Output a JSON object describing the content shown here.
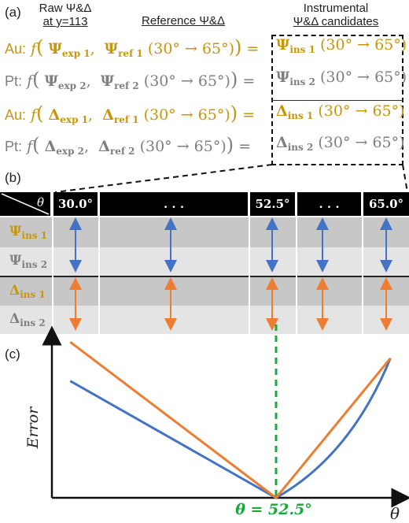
{
  "panel_a": {
    "label": "(a)",
    "col_raw": [
      "Raw Ψ&Δ",
      "at y=113"
    ],
    "col_ref": "Reference Ψ&Δ",
    "col_ins": [
      "Instrumental",
      "Ψ&Δ candidates"
    ],
    "rows": [
      {
        "prefix": "Au:",
        "f": "f",
        "s1": "Ψ",
        "sub1": "exp 1",
        "s2": "Ψ",
        "sub2": "ref 1",
        "range": "(30° → 65°)",
        "eq": "=",
        "s3": "Ψ",
        "sub3": "ins 1",
        "range2": "(30° → 65°)",
        "color": "#c8960a"
      },
      {
        "prefix": "Pt:",
        "f": "f",
        "s1": "Ψ",
        "sub1": "exp 2",
        "s2": "Ψ",
        "sub2": "ref 2",
        "range": "(30° → 65°)",
        "eq": "=",
        "s3": "Ψ",
        "sub3": "ins 2",
        "range2": "(30° → 65°)",
        "color": "#7f7f7f"
      },
      {
        "prefix": "Au:",
        "f": "f",
        "s1": "Δ",
        "sub1": "exp 1",
        "s2": "Δ",
        "sub2": "ref 1",
        "range": "(30° → 65°)",
        "eq": "=",
        "s3": "Δ",
        "sub3": "ins 1",
        "range2": "(30° → 65°)",
        "color": "#c8960a"
      },
      {
        "prefix": "Pt:",
        "f": "f",
        "s1": "Δ",
        "sub1": "exp 2",
        "s2": "Δ",
        "sub2": "ref 2",
        "range": "(30° → 65°)",
        "eq": "=",
        "s3": "Δ",
        "sub3": "ins 2",
        "range2": "(30° → 65°)",
        "color": "#7f7f7f"
      }
    ]
  },
  "panel_b": {
    "label": "(b)",
    "corner": "θ",
    "headers": [
      "30.0°",
      ". . .",
      "52.5°",
      ". . .",
      "65.0°"
    ],
    "rows": [
      {
        "sym": "Ψ",
        "sub": "ins 1",
        "color": "#c8960a"
      },
      {
        "sym": "Ψ",
        "sub": "ins 2",
        "color": "#7f7f7f"
      },
      {
        "sym": "Δ",
        "sub": "ins 1",
        "color": "#c8960a"
      },
      {
        "sym": "Δ",
        "sub": "ins 2",
        "color": "#7f7f7f"
      }
    ],
    "arrow_colors": {
      "psi": "#4472c4",
      "delta": "#ed7d31"
    }
  },
  "panel_c": {
    "label": "(c)",
    "ylabel": "Error",
    "xlabel": "θ",
    "min_label": "θ = 52.5°",
    "min_color": "#1aaa3c"
  },
  "chart_data": {
    "type": "line",
    "xlabel": "θ",
    "ylabel": "Error",
    "x": [
      30.0,
      52.5,
      65.0
    ],
    "series": [
      {
        "values": [
          0.72,
          0.0,
          0.86
        ],
        "color": "#4472c4"
      },
      {
        "values": [
          0.96,
          0.0,
          0.86
        ],
        "color": "#ed7d31"
      }
    ],
    "xlim": [
      28,
      66
    ],
    "ylim": [
      0,
      1
    ],
    "annotations": [
      {
        "x": 52.5,
        "text": "θ = 52.5°"
      }
    ]
  }
}
